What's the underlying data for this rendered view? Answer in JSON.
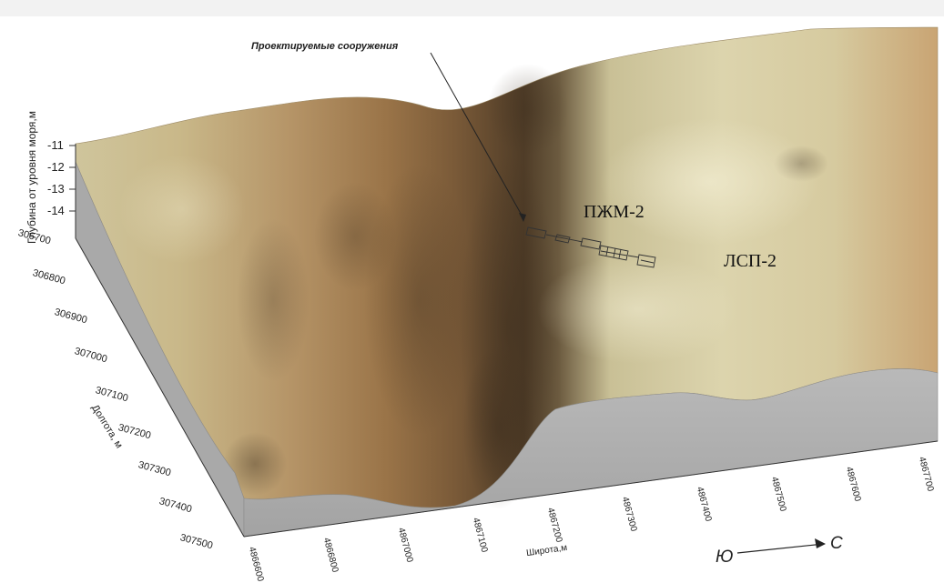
{
  "annotation": {
    "label": "Проектируемые сооружения"
  },
  "objects": [
    "ПЖМ-2",
    "ЛСП-2"
  ],
  "axes": {
    "depth_title": "Глубина от уровня моря,м",
    "depth_ticks": [
      "-11",
      "-12",
      "-13",
      "-14"
    ],
    "y_title": "Долгота, м",
    "y_ticks": [
      "306700",
      "306800",
      "306900",
      "307000",
      "307100",
      "307200",
      "307300",
      "307400",
      "307500"
    ],
    "x_title": "Широта,м",
    "x_ticks": [
      "4866600",
      "4866800",
      "4867000",
      "4867100",
      "4867200",
      "4867300",
      "4867400",
      "4867500",
      "4867600",
      "4867700"
    ]
  },
  "direction": {
    "from": "Ю",
    "to": "С"
  }
}
